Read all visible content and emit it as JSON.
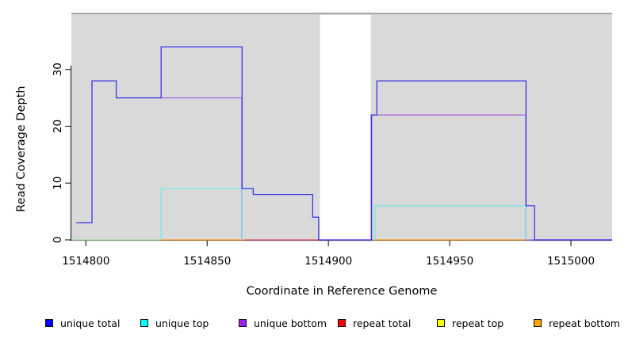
{
  "figure": {
    "bg": "#ffffff"
  },
  "chart_data": {
    "type": "line",
    "subtype": "step-coverage-plot",
    "title": "",
    "xlabel": "Coordinate in Reference Genome",
    "ylabel": "Read Coverage Depth",
    "x_range": [
      1514794,
      1515017
    ],
    "y_range": [
      0,
      40
    ],
    "xticks": [
      1514800,
      1514850,
      1514900,
      1514950,
      1515000
    ],
    "yticks": [
      0,
      10,
      20,
      30
    ],
    "plot_bg": "#d9d9d9",
    "plot_top_edge": "#a9a9a9",
    "axis_color": "#2b2b2b",
    "uncovered_gap": {
      "x0": 1514896.5,
      "x1": 1514917.5,
      "fill": "#ffffff"
    },
    "grid": "off",
    "legend_position": "bottom",
    "series": [
      {
        "name": "repeat top",
        "legend_color": "#ffff00",
        "line_color": "#9fdf9b",
        "paths": [
          [
            [
              1514794,
              0
            ],
            [
              1514831,
              0
            ]
          ]
        ]
      },
      {
        "name": "repeat bottom",
        "legend_color": "#ffa500",
        "line_color": "#ff9e1e",
        "paths": [
          [
            [
              1514831,
              0
            ],
            [
              1514865.5,
              0
            ]
          ],
          [
            [
              1514917.6,
              0
            ],
            [
              1514981.5,
              0
            ]
          ]
        ]
      },
      {
        "name": "repeat total",
        "legend_color": "#ff0000",
        "line_color": "#d84f68",
        "paths": [
          [
            [
              1514865.5,
              0
            ],
            [
              1514896,
              0
            ]
          ]
        ]
      },
      {
        "name": "unique bottom",
        "legend_color": "#a020f0",
        "line_color": "#a86ae0",
        "paths": [
          [
            [
              1514831,
              25
            ],
            [
              1514864.3,
              25
            ],
            [
              1514864.3,
              0
            ]
          ],
          [
            [
              1514917.6,
              0
            ],
            [
              1514917.6,
              22
            ],
            [
              1514981.4,
              22
            ],
            [
              1514981.4,
              0
            ],
            [
              1515017,
              0
            ]
          ]
        ]
      },
      {
        "name": "unique top",
        "legend_color": "#00ffff",
        "line_color": "#76e7ee",
        "paths": [
          [
            [
              1514831,
              0
            ],
            [
              1514831,
              9
            ],
            [
              1514864.4,
              9
            ],
            [
              1514864.4,
              0
            ]
          ],
          [
            [
              1514919.2,
              0
            ],
            [
              1514919.2,
              6
            ],
            [
              1514981.5,
              6
            ],
            [
              1514981.5,
              0
            ]
          ]
        ]
      },
      {
        "name": "unique total",
        "legend_color": "#0000ff",
        "line_color": "#3a35e6",
        "paths": [
          [
            [
              1514796,
              3
            ],
            [
              1514802.5,
              3
            ],
            [
              1514802.5,
              28
            ],
            [
              1514812.5,
              28
            ],
            [
              1514812.5,
              25
            ],
            [
              1514831,
              25
            ],
            [
              1514831,
              34
            ],
            [
              1514864.4,
              34
            ],
            [
              1514864.4,
              9
            ],
            [
              1514869,
              9
            ],
            [
              1514869,
              8
            ],
            [
              1514893.5,
              8
            ],
            [
              1514893.5,
              4
            ],
            [
              1514896,
              4
            ],
            [
              1514896,
              0
            ],
            [
              1514917.8,
              0
            ],
            [
              1514917.8,
              22
            ],
            [
              1514920,
              22
            ],
            [
              1514920,
              28
            ],
            [
              1514981.5,
              28
            ],
            [
              1514981.5,
              6
            ],
            [
              1514985,
              6
            ],
            [
              1514985,
              0
            ],
            [
              1515017,
              0
            ]
          ]
        ]
      }
    ],
    "legend": [
      {
        "label": "unique total",
        "color": "#0000ff"
      },
      {
        "label": "unique top",
        "color": "#00ffff"
      },
      {
        "label": "unique bottom",
        "color": "#a020f0"
      },
      {
        "label": "repeat total",
        "color": "#ff0000"
      },
      {
        "label": "repeat top",
        "color": "#ffff00"
      },
      {
        "label": "repeat bottom",
        "color": "#ffa500"
      }
    ]
  }
}
